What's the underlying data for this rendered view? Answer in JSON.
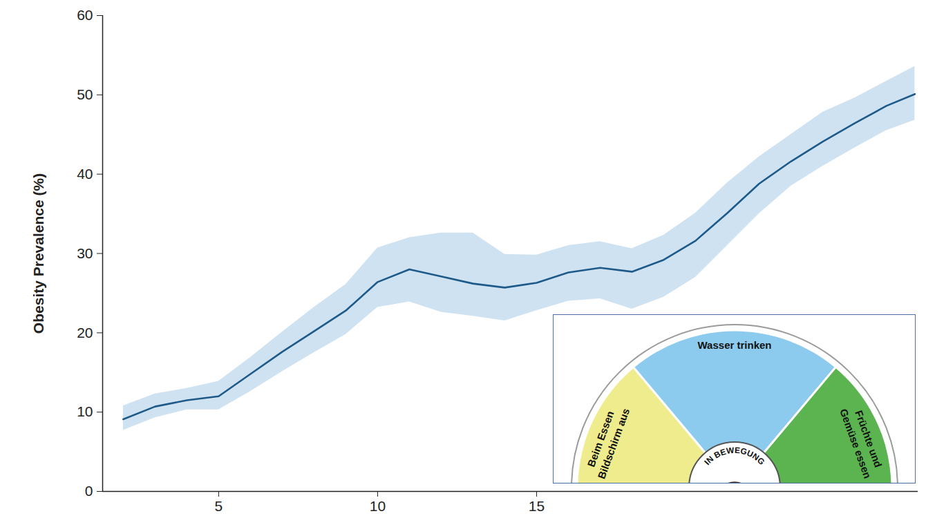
{
  "chart_data": {
    "type": "line",
    "y_label": "Obesity Prevalence (%)",
    "x": [
      2,
      3,
      4,
      5,
      6,
      7,
      8,
      9,
      10,
      11,
      12,
      13,
      14,
      15,
      16,
      17,
      18,
      19,
      20,
      21,
      22,
      23,
      24,
      25,
      26,
      26.9
    ],
    "values": [
      9.1,
      10.7,
      11.5,
      12.0,
      14.8,
      17.6,
      20.2,
      22.8,
      26.4,
      28.0,
      27.1,
      26.2,
      25.7,
      26.3,
      27.6,
      28.2,
      27.7,
      29.2,
      31.6,
      35.1,
      38.8,
      41.6,
      44.1,
      46.4,
      48.6,
      50.1
    ],
    "lower": [
      7.7,
      9.3,
      10.3,
      10.3,
      12.6,
      15.1,
      17.5,
      19.8,
      23.2,
      23.9,
      22.6,
      22.1,
      21.5,
      22.8,
      24.0,
      24.3,
      23.0,
      24.5,
      27.0,
      31.0,
      35.0,
      38.5,
      41.0,
      43.3,
      45.5,
      46.8
    ],
    "upper": [
      10.8,
      12.3,
      13.0,
      13.9,
      16.9,
      20.1,
      23.2,
      26.1,
      30.7,
      32.0,
      32.6,
      32.6,
      29.9,
      29.8,
      31.0,
      31.5,
      30.6,
      32.3,
      35.1,
      38.9,
      42.2,
      45.0,
      47.8,
      49.6,
      51.7,
      53.6
    ],
    "color": "#1d5a89",
    "xlim": [
      1.35,
      27
    ],
    "ylim": [
      0,
      60
    ],
    "xticks": [
      5,
      10,
      15
    ],
    "yticks": [
      0,
      10,
      20,
      30,
      40,
      50,
      60
    ]
  },
  "inset": {
    "center_label": "IN BEWEGUNG",
    "segments": [
      {
        "label": [
          "Beim Essen",
          "Bildschirm aus"
        ],
        "color": "#eeec8c"
      },
      {
        "label": [
          "Wasser trinken"
        ],
        "color": "#8ccbee"
      },
      {
        "label": [
          "Früchte und",
          "Gemüse essen"
        ],
        "color": "#5bb450"
      }
    ]
  }
}
